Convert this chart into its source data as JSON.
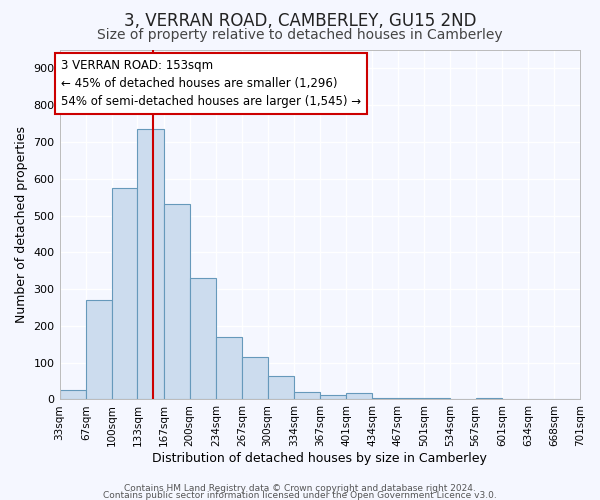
{
  "title": "3, VERRAN ROAD, CAMBERLEY, GU15 2ND",
  "subtitle": "Size of property relative to detached houses in Camberley",
  "xlabel": "Distribution of detached houses by size in Camberley",
  "ylabel": "Number of detached properties",
  "bar_color": "#ccdcee",
  "bar_edge_color": "#6699bb",
  "background_color": "#f5f7ff",
  "grid_color": "#ffffff",
  "bins": [
    33,
    67,
    100,
    133,
    167,
    200,
    234,
    267,
    300,
    334,
    367,
    401,
    434,
    467,
    501,
    534,
    567,
    601,
    634,
    668,
    701
  ],
  "heights": [
    25,
    270,
    575,
    735,
    530,
    330,
    170,
    115,
    65,
    20,
    12,
    18,
    5,
    5,
    5,
    0,
    5,
    0,
    0,
    0
  ],
  "property_size": 153,
  "property_line_color": "#cc0000",
  "annotation_line1": "3 VERRAN ROAD: 153sqm",
  "annotation_line2": "← 45% of detached houses are smaller (1,296)",
  "annotation_line3": "54% of semi-detached houses are larger (1,545) →",
  "annotation_box_color": "#ffffff",
  "annotation_border_color": "#cc0000",
  "ylim": [
    0,
    950
  ],
  "yticks": [
    0,
    100,
    200,
    300,
    400,
    500,
    600,
    700,
    800,
    900
  ],
  "footer1": "Contains HM Land Registry data © Crown copyright and database right 2024.",
  "footer2": "Contains public sector information licensed under the Open Government Licence v3.0.",
  "title_fontsize": 12,
  "subtitle_fontsize": 10,
  "tick_label_fontsize": 7.5,
  "axis_label_fontsize": 9,
  "annotation_fontsize": 8.5
}
